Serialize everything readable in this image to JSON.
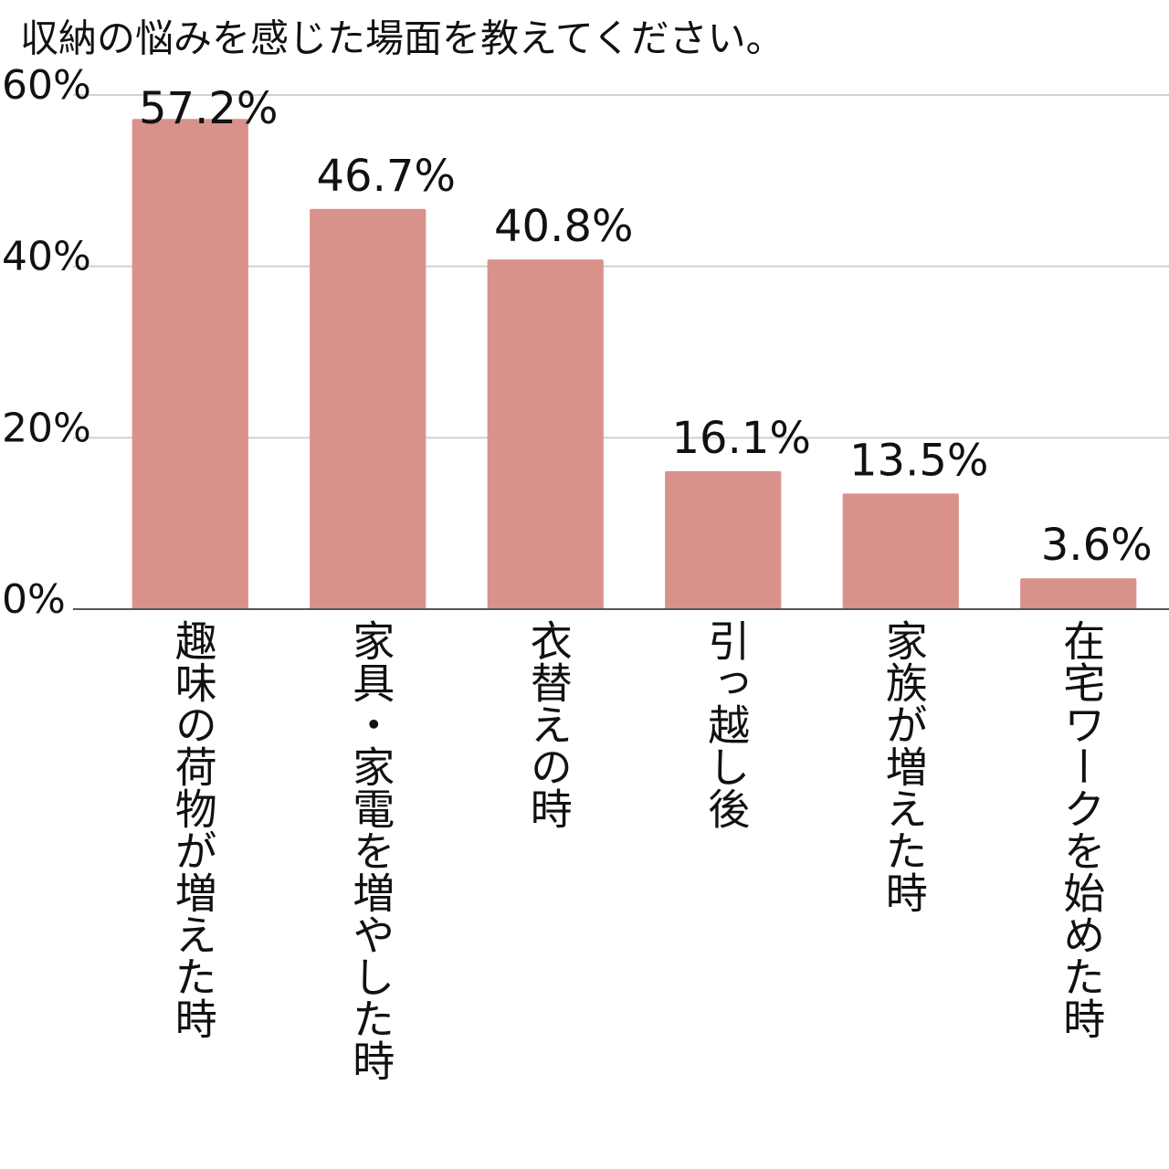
{
  "chart_data": {
    "type": "bar",
    "title": "収納の悩みを感じた場面を教えてください。",
    "categories": [
      "趣味の荷物が増えた時",
      "家具・家電を増やした時",
      "衣替えの時",
      "引っ越し後",
      "家族が増えた時",
      "在宅ワークを始めた時"
    ],
    "values": [
      57.2,
      46.7,
      40.8,
      16.1,
      13.5,
      3.6
    ],
    "value_labels": [
      "57.2%",
      "46.7%",
      "40.8%",
      "16.1%",
      "13.5%",
      "3.6%"
    ],
    "color": "#d9918c",
    "ylim": [
      0,
      60
    ],
    "yticks": [
      {
        "value": 0,
        "label": "0%"
      },
      {
        "value": 20,
        "label": "20%"
      },
      {
        "value": 40,
        "label": "40%"
      },
      {
        "value": 60,
        "label": "60%"
      }
    ],
    "grid": true
  }
}
